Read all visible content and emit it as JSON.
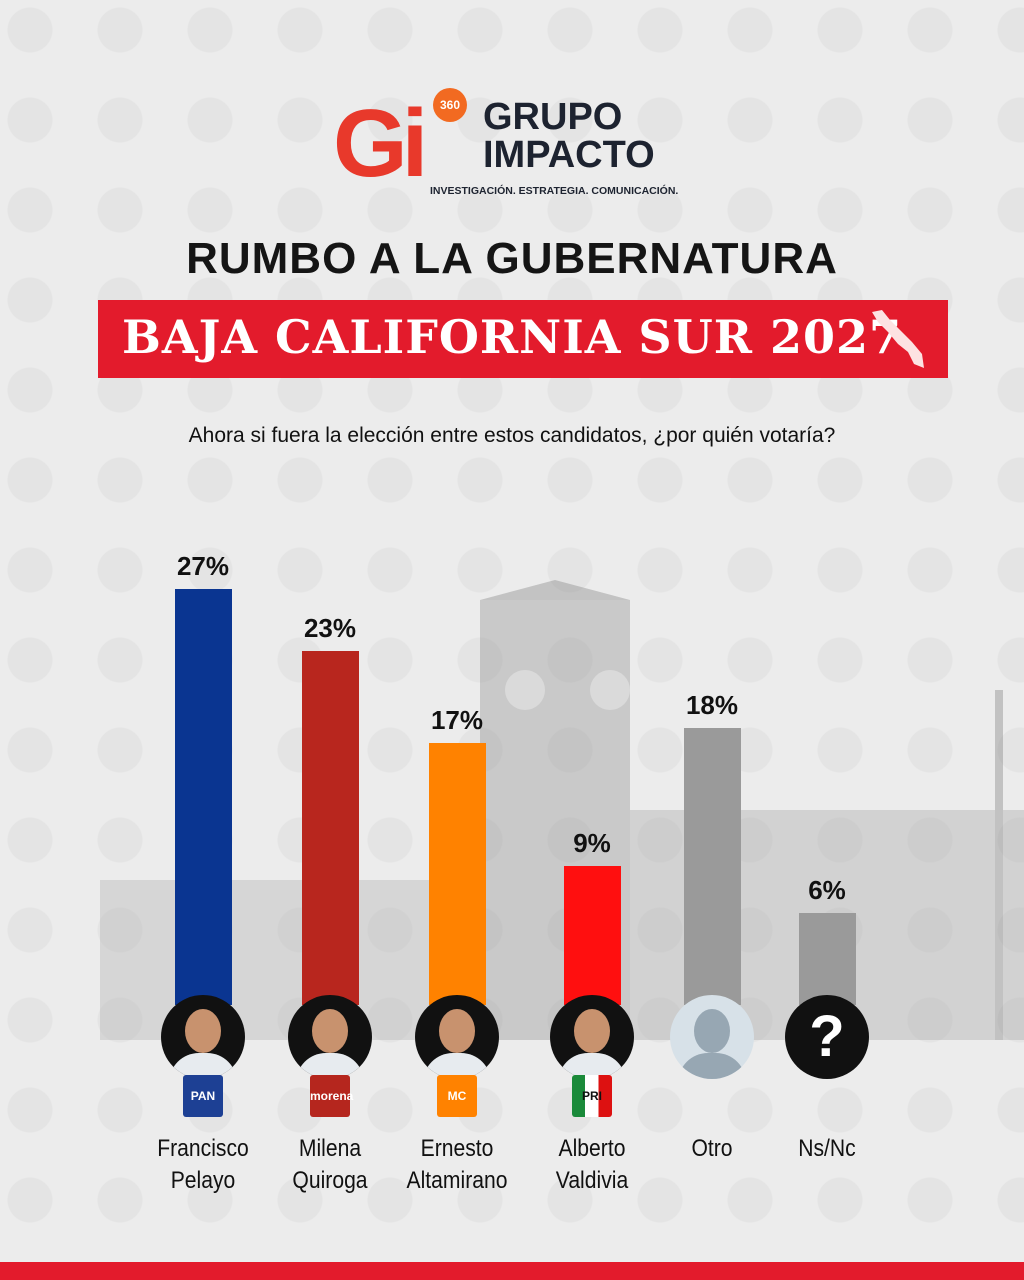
{
  "logo": {
    "letters": "Gi",
    "badge": "360",
    "name_line1": "GRUPO",
    "name_line2": "IMPACTO",
    "tagline": "INVESTIGACIÓN. ESTRATEGIA. COMUNICACIÓN."
  },
  "header": {
    "title": "RUMBO A LA GUBERNATURA",
    "banner": "BAJA CALIFORNIA SUR 2027"
  },
  "colors": {
    "accent": "#e31b2c"
  },
  "chart_data": {
    "type": "bar",
    "title": "Ahora si fuera la elección entre estos candidatos, ¿por quién votaría?",
    "categories": [
      "Francisco Pelayo",
      "Milena Quiroga",
      "Ernesto Altamirano",
      "Alberto Valdivia",
      "Otro",
      "Ns/Nc"
    ],
    "name_lines": [
      [
        "Francisco",
        "Pelayo"
      ],
      [
        "Milena",
        "Quiroga"
      ],
      [
        "Ernesto",
        "Altamirano"
      ],
      [
        "Alberto",
        "Valdivia"
      ],
      [
        "Otro",
        ""
      ],
      [
        "Ns/Nc",
        ""
      ]
    ],
    "values": [
      27,
      23,
      17,
      9,
      18,
      6
    ],
    "labels": [
      "27%",
      "23%",
      "17%",
      "9%",
      "18%",
      "6%"
    ],
    "colors": [
      "#0a3591",
      "#b8261e",
      "#ff8200",
      "#ff0f0f",
      "#9a9a9a",
      "#9a9a9a"
    ],
    "parties": [
      "PAN",
      "morena",
      "MC",
      "PRI",
      "",
      ""
    ],
    "party_colors": [
      "#1d4094",
      "#b5261e",
      "#ff8200",
      "#bbbbbb",
      "",
      ""
    ],
    "avatars": [
      "photo",
      "photo",
      "photo",
      "photo",
      "generic-person-icon",
      "question-mark-icon"
    ],
    "ylim": [
      0,
      30
    ],
    "grid": false
  }
}
